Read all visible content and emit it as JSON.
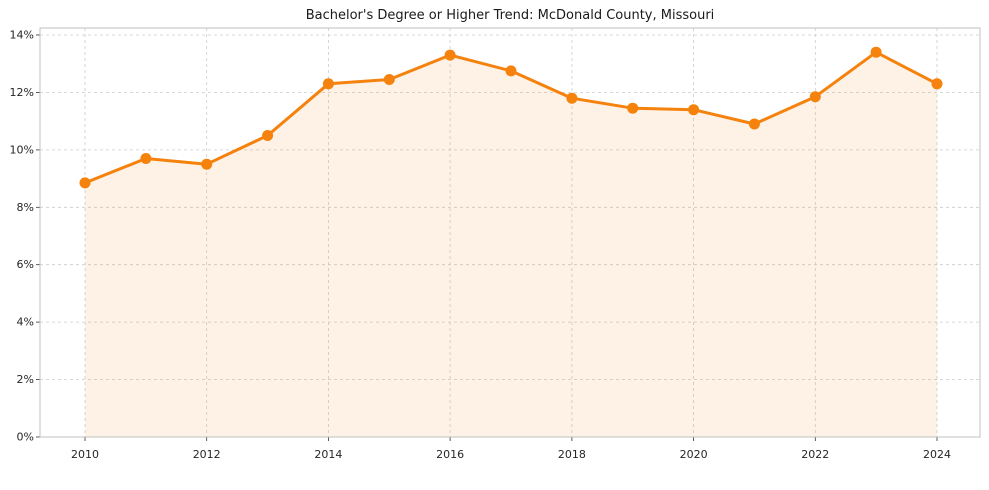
{
  "chart_data": {
    "type": "area",
    "title": "Bachelor's Degree or Higher Trend: McDonald County, Missouri",
    "series_name": "Bachelor's Degree or Higher (%)",
    "x": [
      2010,
      2011,
      2012,
      2013,
      2014,
      2015,
      2016,
      2017,
      2018,
      2019,
      2020,
      2021,
      2022,
      2023,
      2024
    ],
    "values": [
      8.85,
      9.7,
      9.5,
      10.5,
      12.3,
      12.45,
      13.3,
      12.75,
      11.8,
      11.45,
      11.4,
      10.9,
      11.85,
      13.4,
      12.3
    ],
    "xlabel": "",
    "ylabel": "",
    "xlim": [
      2010,
      2024
    ],
    "ylim": [
      0,
      14
    ],
    "ytick_step": 2,
    "ytick_labels": [
      "0%",
      "2%",
      "4%",
      "6%",
      "8%",
      "10%",
      "12%",
      "14%"
    ],
    "xtick_labels": [
      "2010",
      "2012",
      "2014",
      "2016",
      "2018",
      "2020",
      "2022",
      "2024"
    ],
    "grid": true,
    "grid_style": "dashed",
    "legend_position": "none",
    "line_color": "#f5820d",
    "fill_color": "rgba(245, 130, 13, 0.10)",
    "marker": "circle"
  }
}
